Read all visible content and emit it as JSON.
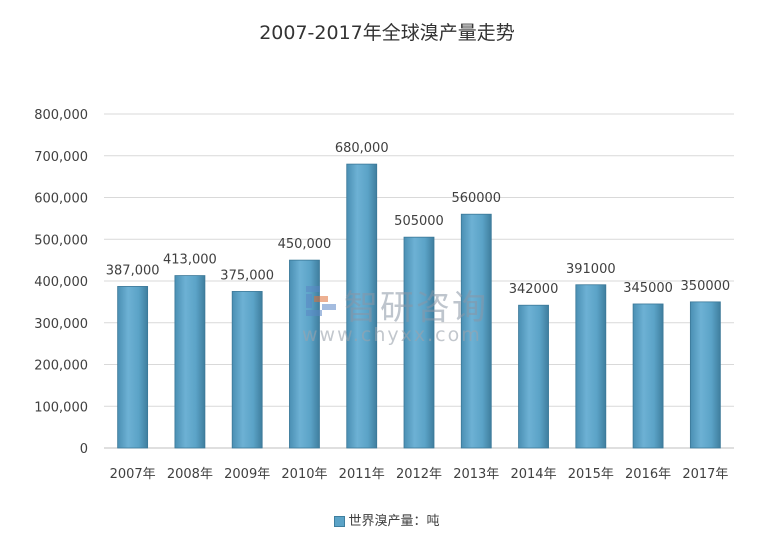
{
  "title": "2007-2017年全球溴产量走势",
  "legend": {
    "label": "世界溴产量：吨",
    "color": "#5ba3c7"
  },
  "watermark": {
    "brand": "智研咨询",
    "url": "www.chyxx.com"
  },
  "chart_data": {
    "type": "bar",
    "title": "2007-2017年全球溴产量走势",
    "categories": [
      "2007年",
      "2008年",
      "2009年",
      "2010年",
      "2011年",
      "2012年",
      "2013年",
      "2014年",
      "2015年",
      "2016年",
      "2017年"
    ],
    "series": [
      {
        "name": "世界溴产量：吨",
        "values": [
          387000,
          413000,
          375000,
          450000,
          680000,
          505000,
          560000,
          342000,
          391000,
          345000,
          350000
        ],
        "labels": [
          "387,000",
          "413,000",
          "375,000",
          "450,000",
          "680,000",
          "505000",
          "560000",
          "342000",
          "391000",
          "345000",
          "350000"
        ]
      }
    ],
    "ylim": [
      0,
      800000
    ],
    "yticks": [
      0,
      100000,
      200000,
      300000,
      400000,
      500000,
      600000,
      700000,
      800000
    ],
    "ytick_labels": [
      "0",
      "100,000",
      "200,000",
      "300,000",
      "400,000",
      "500,000",
      "600,000",
      "700,000",
      "800,000"
    ],
    "xlabel": "",
    "ylabel": "",
    "grid": true,
    "legend_position": "bottom"
  }
}
